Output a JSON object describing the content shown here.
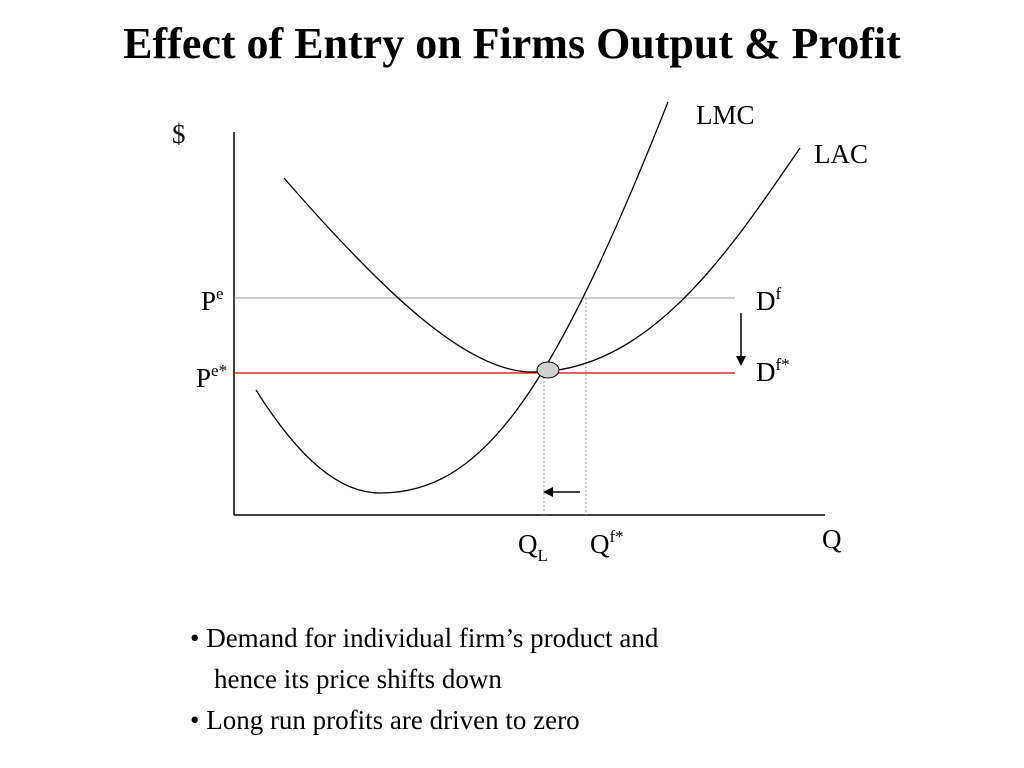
{
  "title": "Effect of Entry on Firms Output & Profit",
  "axes": {
    "y_label": "$",
    "x_label": "Q"
  },
  "curves": {
    "lmc": "LMC",
    "lac": "LAC"
  },
  "prices": {
    "pe": {
      "base": "P",
      "sup": "e"
    },
    "pe_star": {
      "base": "P",
      "sup": "e*"
    }
  },
  "demand": {
    "df": {
      "base": "D",
      "sup": "f"
    },
    "df_star": {
      "base": "D",
      "sup": "f*"
    }
  },
  "quantities": {
    "ql": {
      "base": "Q",
      "sub": "L"
    },
    "qf_star": {
      "base": "Q",
      "sup": "f*"
    }
  },
  "colors": {
    "highlight": "#e00000",
    "ink": "#000000",
    "guide": "#999999",
    "point_fill": "#d0d0d0"
  },
  "bullets": {
    "line1": "• Demand for individual firm’s product and",
    "line2": "hence its price shifts down",
    "line3": "• Long run profits are driven to zero"
  }
}
